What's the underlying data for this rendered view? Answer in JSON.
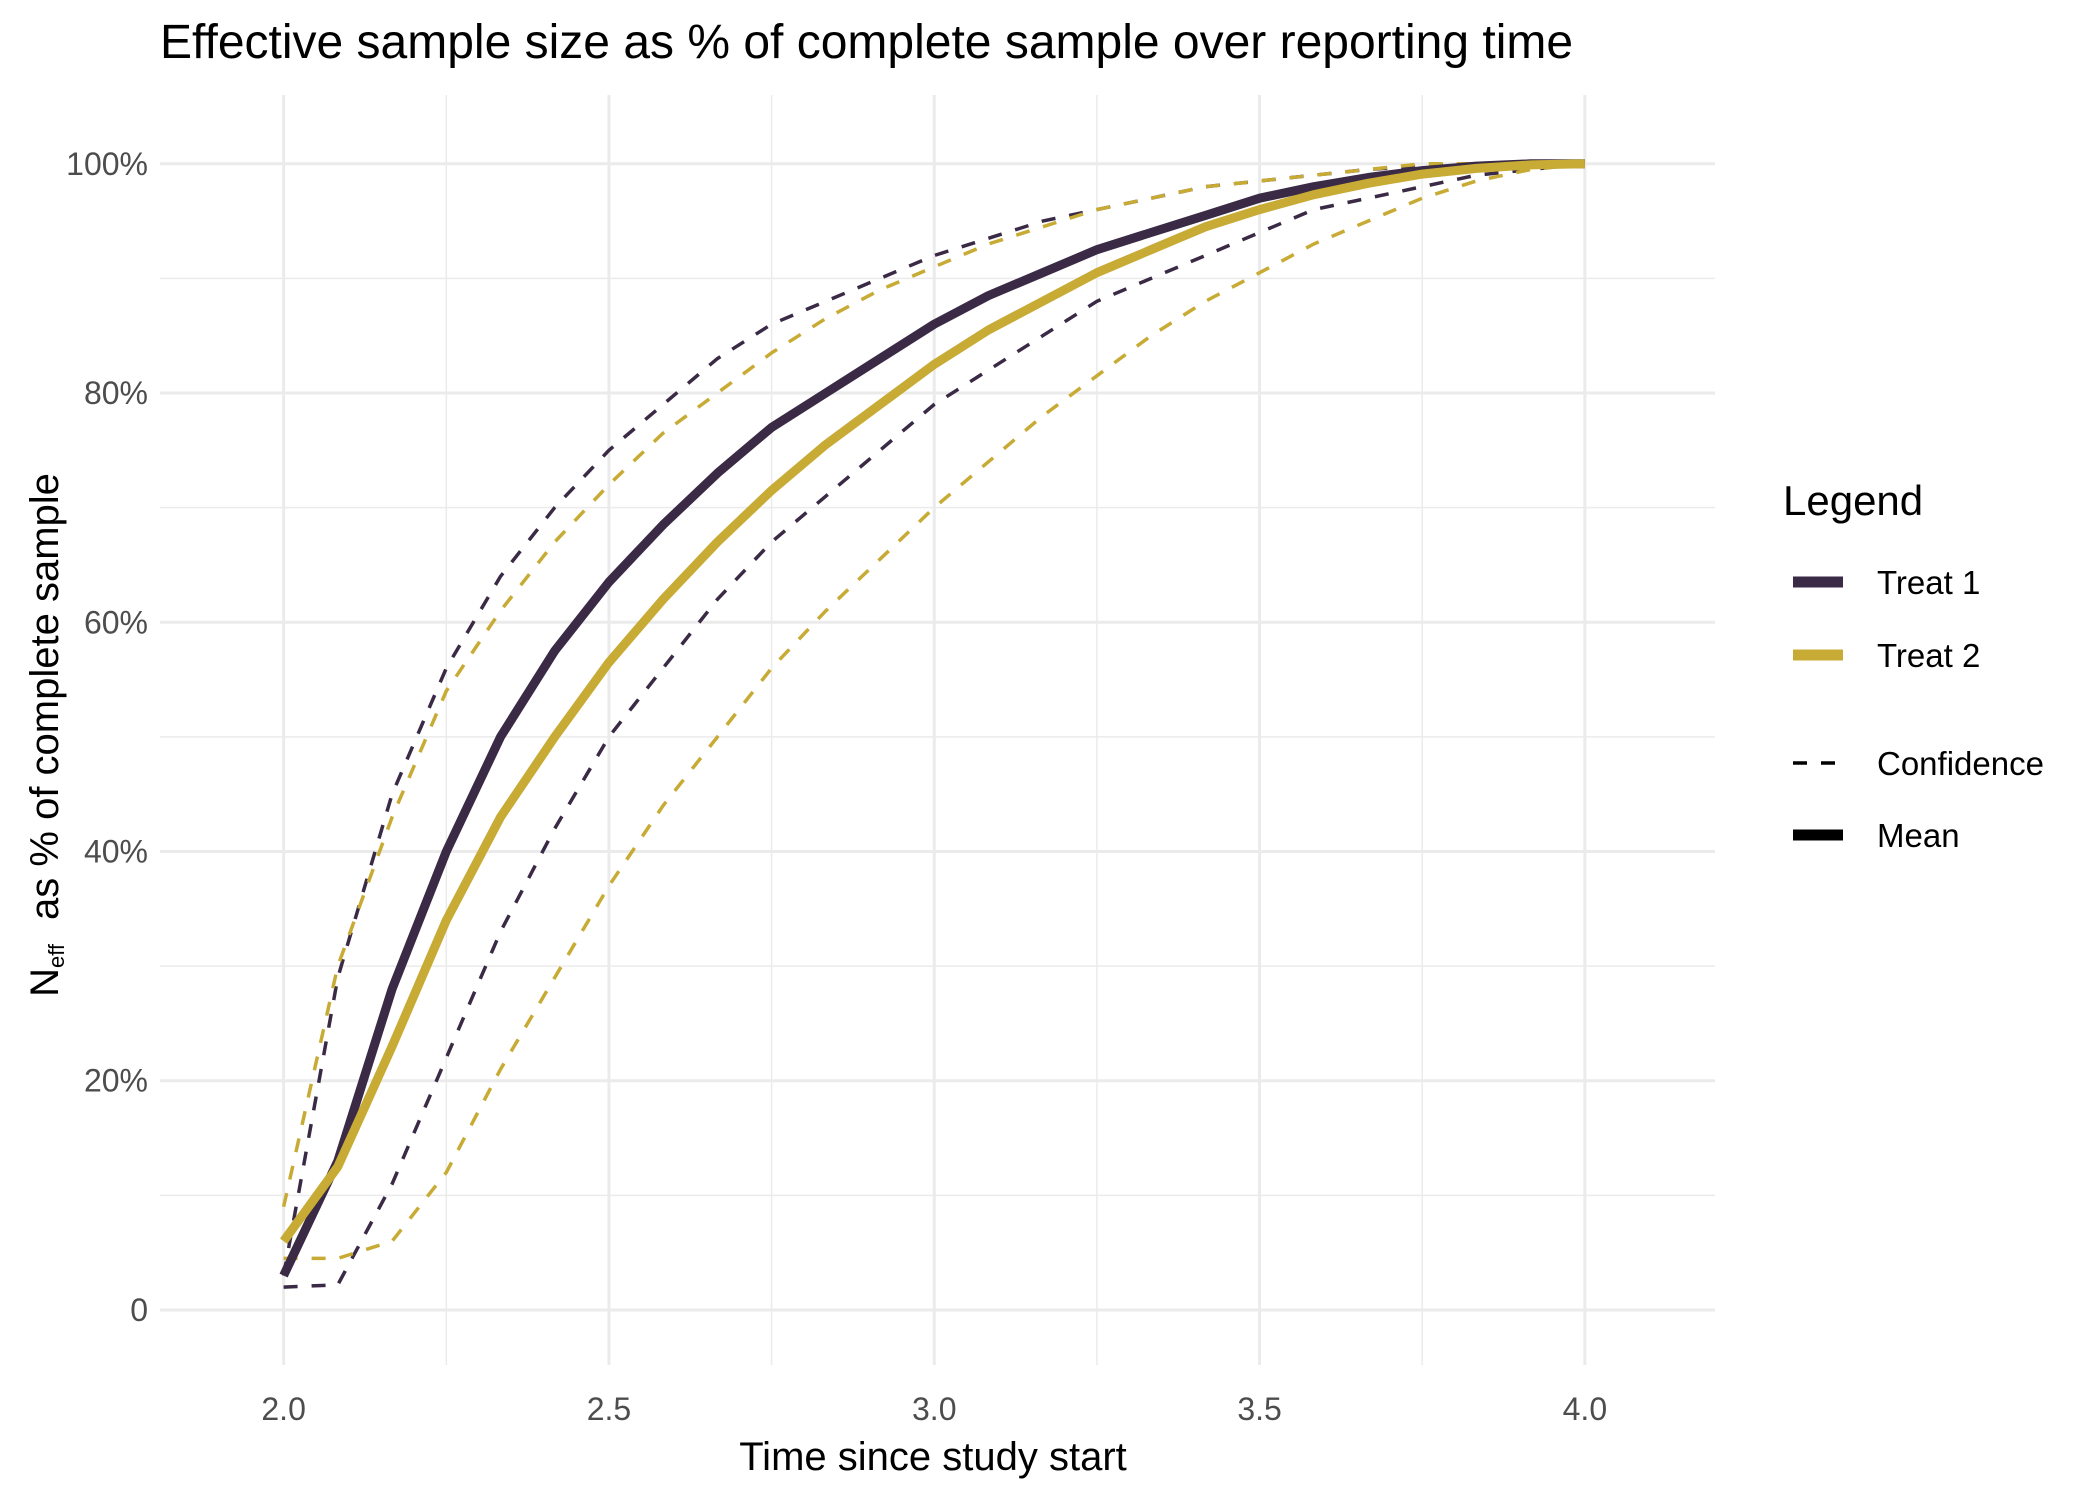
{
  "chart_data": {
    "type": "line",
    "title": "Effective sample size as % of complete sample over reporting time",
    "xlabel": "Time since study start",
    "ylabel_main": "N",
    "ylabel_sub": "eff",
    "ylabel_rest": "as % of complete sample",
    "xlim": [
      1.81,
      4.2
    ],
    "ylim": [
      -0.048,
      1.06
    ],
    "x_ticks": [
      2.0,
      2.5,
      3.0,
      3.5,
      4.0
    ],
    "x_tick_labels": [
      "2.0",
      "2.5",
      "3.0",
      "3.5",
      "4.0"
    ],
    "y_ticks": [
      0,
      0.2,
      0.4,
      0.6,
      0.8,
      1.0
    ],
    "y_tick_labels": [
      "0",
      "20%",
      "40%",
      "60%",
      "80%",
      "100%"
    ],
    "grid": true,
    "legend_position": "right",
    "legend": {
      "title": "Legend",
      "color_entries": [
        {
          "label": "Treat 1",
          "color": "#3a2a45"
        },
        {
          "label": "Treat 2",
          "color": "#c8ab35"
        }
      ],
      "linetype_entries": [
        {
          "label": "Confidence",
          "style": "dashed"
        },
        {
          "label": "Mean",
          "style": "solid"
        }
      ]
    },
    "x": [
      2.0,
      2.0833,
      2.1667,
      2.25,
      2.3333,
      2.4167,
      2.5,
      2.5833,
      2.6667,
      2.75,
      2.8333,
      2.9167,
      3.0,
      3.0833,
      3.1667,
      3.25,
      3.3333,
      3.4167,
      3.5,
      3.5833,
      3.6667,
      3.75,
      3.8333,
      3.9167,
      4.0
    ],
    "series": [
      {
        "name": "Treat 1",
        "kind": "upper",
        "color": "#3a2a45",
        "dashed": true,
        "values": [
          0.03,
          0.29,
          0.45,
          0.56,
          0.64,
          0.7,
          0.75,
          0.79,
          0.83,
          0.86,
          0.88,
          0.9,
          0.92,
          0.935,
          0.95,
          0.96,
          0.97,
          0.98,
          0.985,
          0.99,
          0.995,
          0.998,
          1.0,
          1.0,
          1.0
        ]
      },
      {
        "name": "Treat 1",
        "kind": "lower",
        "color": "#3a2a45",
        "dashed": true,
        "values": [
          0.02,
          0.022,
          0.11,
          0.22,
          0.33,
          0.42,
          0.5,
          0.56,
          0.62,
          0.67,
          0.71,
          0.75,
          0.79,
          0.82,
          0.85,
          0.88,
          0.9,
          0.92,
          0.94,
          0.96,
          0.97,
          0.98,
          0.99,
          0.995,
          1.0
        ]
      },
      {
        "name": "Treat 2",
        "kind": "upper",
        "color": "#c8ab35",
        "dashed": true,
        "values": [
          0.09,
          0.3,
          0.43,
          0.54,
          0.61,
          0.67,
          0.72,
          0.765,
          0.8,
          0.835,
          0.865,
          0.89,
          0.91,
          0.93,
          0.945,
          0.96,
          0.97,
          0.98,
          0.985,
          0.99,
          0.995,
          1.0,
          1.0,
          1.0,
          1.0
        ]
      },
      {
        "name": "Treat 2",
        "kind": "lower",
        "color": "#c8ab35",
        "dashed": true,
        "values": [
          0.045,
          0.045,
          0.06,
          0.12,
          0.21,
          0.29,
          0.37,
          0.44,
          0.5,
          0.56,
          0.61,
          0.655,
          0.7,
          0.74,
          0.78,
          0.815,
          0.85,
          0.88,
          0.905,
          0.93,
          0.95,
          0.97,
          0.985,
          0.995,
          1.0
        ]
      },
      {
        "name": "Treat 1",
        "kind": "mean",
        "color": "#3a2a45",
        "dashed": false,
        "values": [
          0.03,
          0.13,
          0.28,
          0.4,
          0.5,
          0.575,
          0.635,
          0.685,
          0.73,
          0.77,
          0.8,
          0.83,
          0.86,
          0.885,
          0.905,
          0.925,
          0.94,
          0.955,
          0.97,
          0.98,
          0.988,
          0.994,
          0.998,
          1.0,
          1.0
        ]
      },
      {
        "name": "Treat 2",
        "kind": "mean",
        "color": "#c8ab35",
        "dashed": false,
        "values": [
          0.06,
          0.125,
          0.23,
          0.34,
          0.43,
          0.5,
          0.565,
          0.62,
          0.67,
          0.715,
          0.755,
          0.79,
          0.825,
          0.855,
          0.88,
          0.905,
          0.925,
          0.945,
          0.96,
          0.973,
          0.983,
          0.991,
          0.996,
          0.999,
          1.0
        ]
      }
    ]
  }
}
